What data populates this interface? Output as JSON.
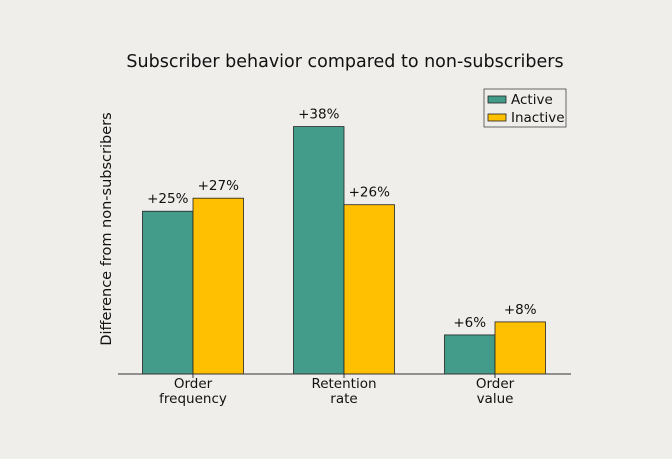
{
  "chart_data": {
    "type": "bar",
    "title": "Subscriber behavior compared to non-subscribers",
    "xlabel": "",
    "ylabel": "Difference from non-subscribers",
    "categories": [
      [
        "Order",
        "frequency"
      ],
      [
        "Retention",
        "rate"
      ],
      [
        "Order",
        "value"
      ]
    ],
    "series": [
      {
        "name": "Active",
        "color": "#439c8a",
        "values": [
          25,
          38,
          6
        ],
        "labels": [
          "+25%",
          "+38%",
          "+6%"
        ]
      },
      {
        "name": "Inactive",
        "color": "#ffc001",
        "values": [
          27,
          26,
          8
        ],
        "labels": [
          "+27%",
          "+26%",
          "+8%"
        ]
      }
    ],
    "ylim": [
      0,
      45
    ],
    "grid": false,
    "yticks_visible": false,
    "legend_position": "top-right"
  }
}
